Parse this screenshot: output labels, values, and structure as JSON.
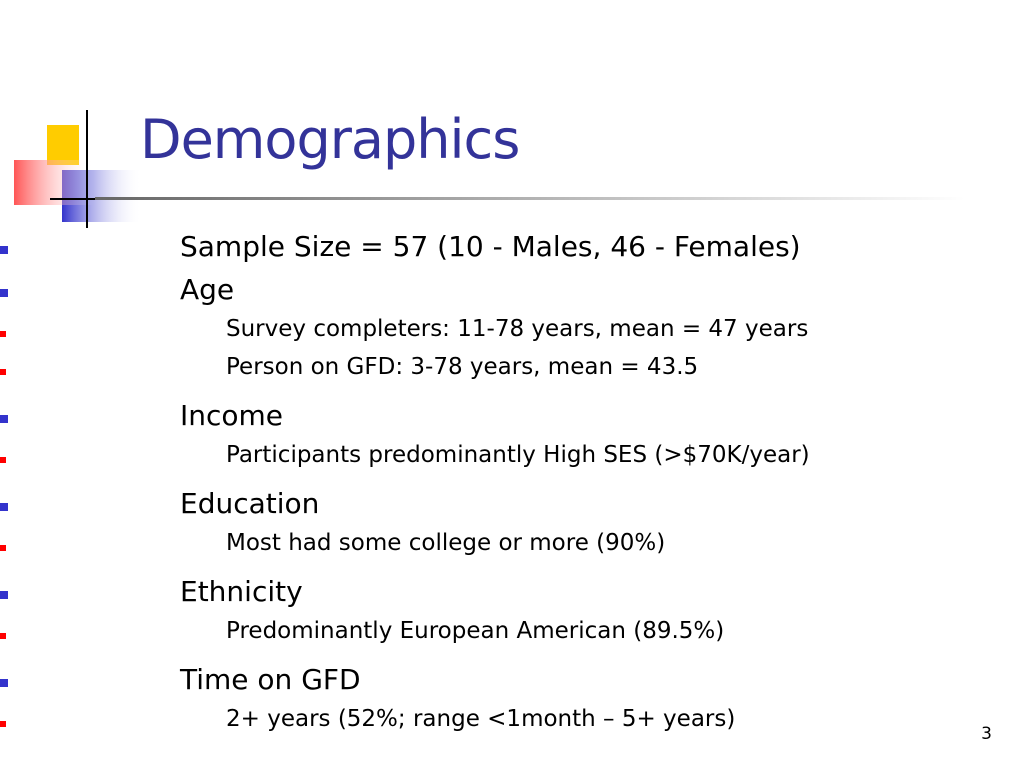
{
  "slide": {
    "title": "Demographics",
    "bullets": [
      {
        "text": "Sample Size = 57 (10 - Males, 46 - Females)",
        "sub": []
      },
      {
        "text": "Age",
        "sub": [
          "Survey completers: 11-78 years, mean = 47 years",
          "Person on GFD: 3-78 years, mean = 43.5"
        ]
      },
      {
        "text": "Income",
        "sub": [
          "Participants predominantly High SES (>$70K/year)"
        ]
      },
      {
        "text": "Education",
        "sub": [
          "Most had some college or more (90%)"
        ]
      },
      {
        "text": "Ethnicity",
        "sub": [
          "Predominantly European American (89.5%)"
        ]
      },
      {
        "text": "Time on GFD",
        "sub": [
          "2+ years (52%; range <1month – 5+ years)"
        ]
      }
    ],
    "page_number": "3"
  }
}
